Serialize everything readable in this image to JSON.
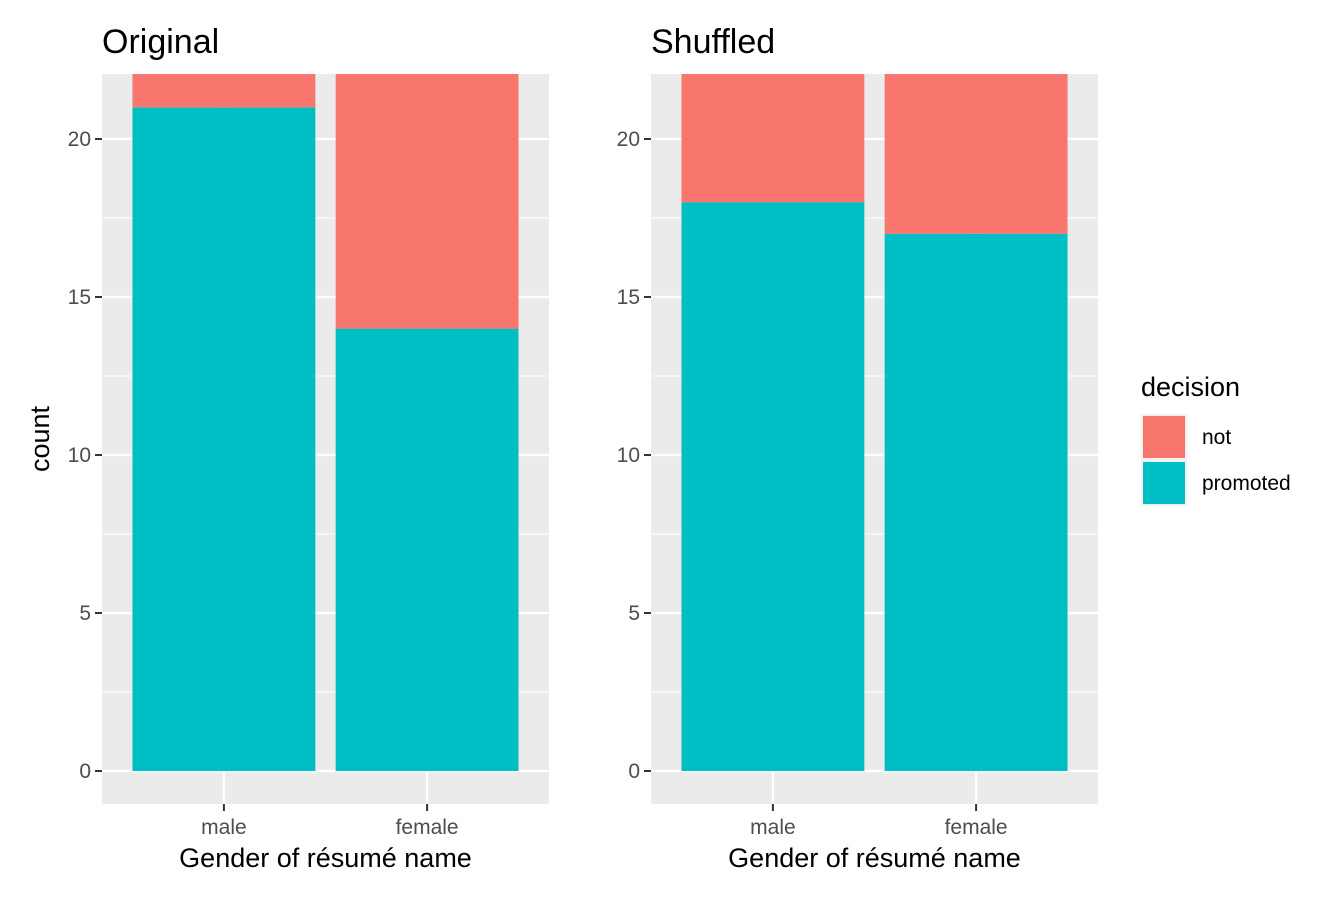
{
  "chart_data": [
    {
      "type": "bar",
      "stacked": true,
      "title": "Original",
      "xlabel": "Gender of résumé name",
      "ylabel": "count",
      "categories": [
        "male",
        "female"
      ],
      "ylim": [
        0,
        22
      ],
      "yticks": [
        0,
        5,
        10,
        15,
        20
      ],
      "series": [
        {
          "name": "promoted",
          "values": [
            21,
            14
          ],
          "color": "#00BFC4"
        },
        {
          "name": "not",
          "values": [
            3,
            10
          ],
          "color": "#F8766D"
        }
      ]
    },
    {
      "type": "bar",
      "stacked": true,
      "title": "Shuffled",
      "xlabel": "Gender of résumé name",
      "ylabel": "",
      "categories": [
        "male",
        "female"
      ],
      "ylim": [
        0,
        22
      ],
      "yticks": [
        0,
        5,
        10,
        15,
        20
      ],
      "series": [
        {
          "name": "promoted",
          "values": [
            18,
            17
          ],
          "color": "#00BFC4"
        },
        {
          "name": "not",
          "values": [
            6,
            7
          ],
          "color": "#F8766D"
        }
      ]
    }
  ],
  "legend": {
    "title": "decision",
    "placement": "right",
    "items": [
      {
        "label": "not",
        "color": "#F8766D"
      },
      {
        "label": "promoted",
        "color": "#00BFC4"
      }
    ]
  },
  "colors": {
    "panel_background": "#EBEBEB",
    "grid": "#FFFFFF",
    "tick_text": "#4D4D4D"
  }
}
